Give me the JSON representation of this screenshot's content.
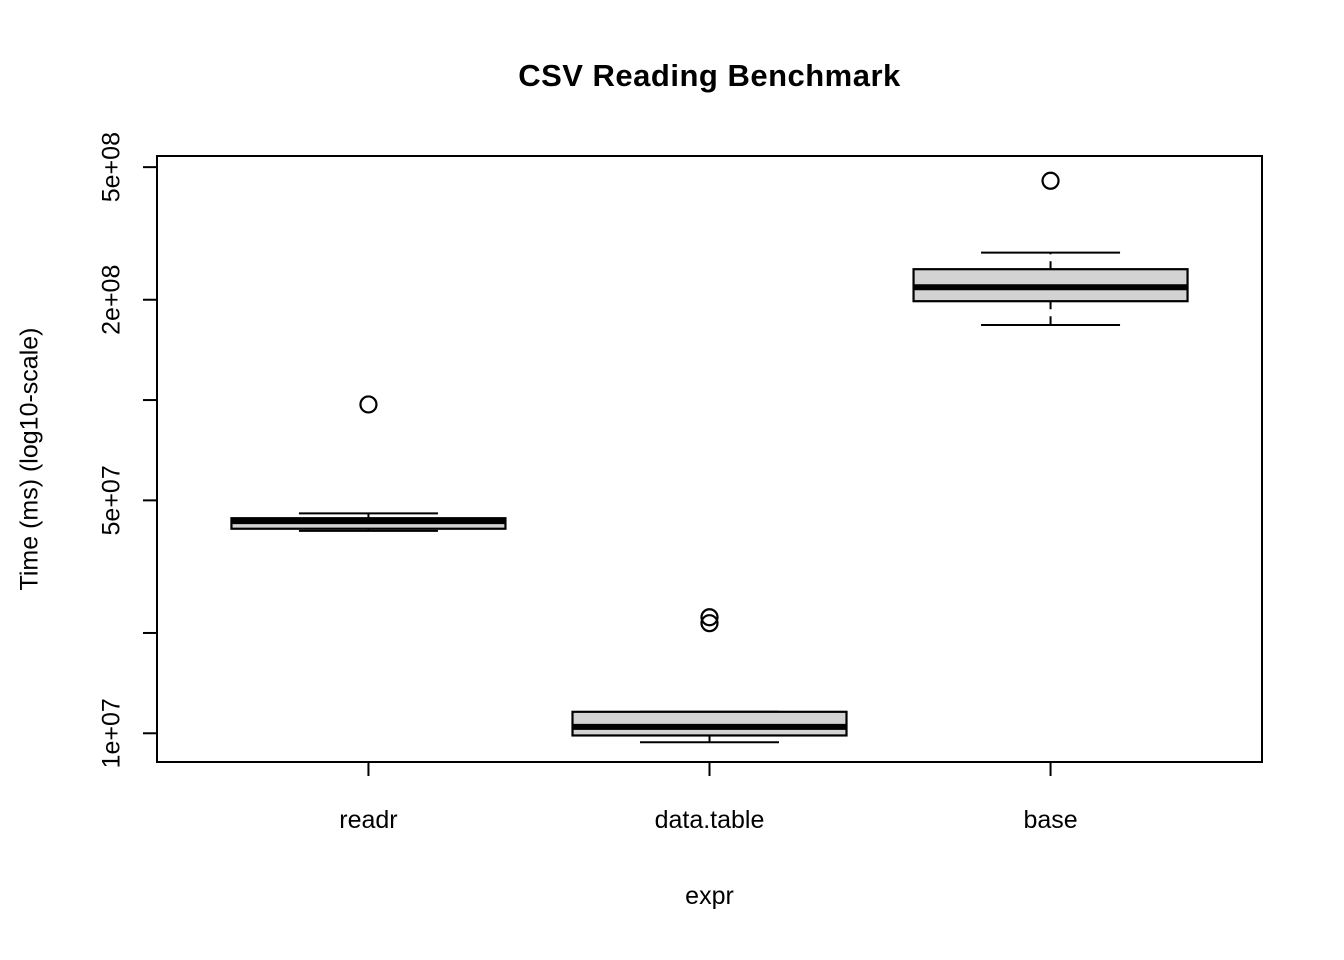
{
  "chart_data": {
    "type": "boxplot",
    "title": "CSV Reading Benchmark",
    "xlabel": "expr",
    "ylabel": "Time (ms) (log10-scale)",
    "log_scale": true,
    "ylim": [
      8200000,
      540000000
    ],
    "grid": false,
    "legend": "none",
    "categories": [
      "readr",
      "data.table",
      "base"
    ],
    "y_ticks": [
      {
        "value": 10000000,
        "label": "1e+07"
      },
      {
        "value": 20000000,
        "label": ""
      },
      {
        "value": 50000000,
        "label": "5e+07"
      },
      {
        "value": 100000000,
        "label": ""
      },
      {
        "value": 200000000,
        "label": "2e+08"
      },
      {
        "value": 500000000,
        "label": "5e+08"
      }
    ],
    "series": [
      {
        "name": "readr",
        "whisker_low": 40500000,
        "q1": 41100000,
        "median": 43300000,
        "q3": 44200000,
        "whisker_high": 45700000,
        "outliers": [
          97000000
        ]
      },
      {
        "name": "data.table",
        "whisker_low": 9400000,
        "q1": 9850000,
        "median": 10450000,
        "q3": 11600000,
        "whisker_high": 11600000,
        "outliers": [
          21400000,
          22300000
        ]
      },
      {
        "name": "base",
        "whisker_low": 168000000,
        "q1": 198000000,
        "median": 218000000,
        "q3": 247000000,
        "whisker_high": 277000000,
        "outliers": [
          455000000
        ]
      }
    ],
    "colors": {
      "box_fill": "#d3d3d3",
      "stroke": "#000000",
      "background": "#ffffff"
    }
  }
}
